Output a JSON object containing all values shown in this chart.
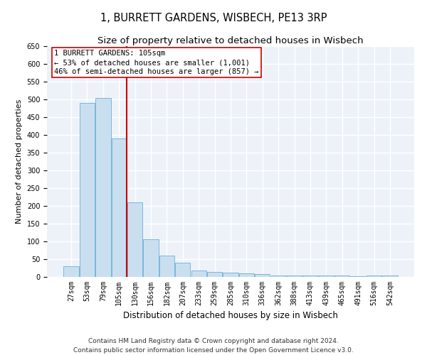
{
  "title": "1, BURRETT GARDENS, WISBECH, PE13 3RP",
  "subtitle": "Size of property relative to detached houses in Wisbech",
  "xlabel": "Distribution of detached houses by size in Wisbech",
  "ylabel": "Number of detached properties",
  "footnote": "Contains HM Land Registry data © Crown copyright and database right 2024.\nContains public sector information licensed under the Open Government Licence v3.0.",
  "bar_labels": [
    "27sqm",
    "53sqm",
    "79sqm",
    "105sqm",
    "130sqm",
    "156sqm",
    "182sqm",
    "207sqm",
    "233sqm",
    "259sqm",
    "285sqm",
    "310sqm",
    "336sqm",
    "362sqm",
    "388sqm",
    "413sqm",
    "439sqm",
    "465sqm",
    "491sqm",
    "516sqm",
    "542sqm"
  ],
  "bar_values": [
    30,
    490,
    505,
    390,
    210,
    107,
    60,
    40,
    18,
    15,
    12,
    11,
    9,
    5,
    5,
    5,
    5,
    5,
    3,
    5,
    5
  ],
  "bar_color": "#c9dff0",
  "bar_edge_color": "#6aaed6",
  "bar_linewidth": 0.6,
  "vline_index": 3,
  "vline_color": "#cc0000",
  "vline_linewidth": 1.5,
  "annotation_text": "1 BURRETT GARDENS: 105sqm\n← 53% of detached houses are smaller (1,001)\n46% of semi-detached houses are larger (857) →",
  "annotation_box_color": "#ffffff",
  "annotation_box_edge": "#cc0000",
  "ylim": [
    0,
    650
  ],
  "yticks": [
    0,
    50,
    100,
    150,
    200,
    250,
    300,
    350,
    400,
    450,
    500,
    550,
    600,
    650
  ],
  "bg_color": "#edf2f9",
  "grid_color": "#ffffff",
  "title_fontsize": 10.5,
  "subtitle_fontsize": 9.5,
  "xlabel_fontsize": 8.5,
  "ylabel_fontsize": 8,
  "tick_fontsize": 7,
  "annotation_fontsize": 7.5,
  "footnote_fontsize": 6.5
}
